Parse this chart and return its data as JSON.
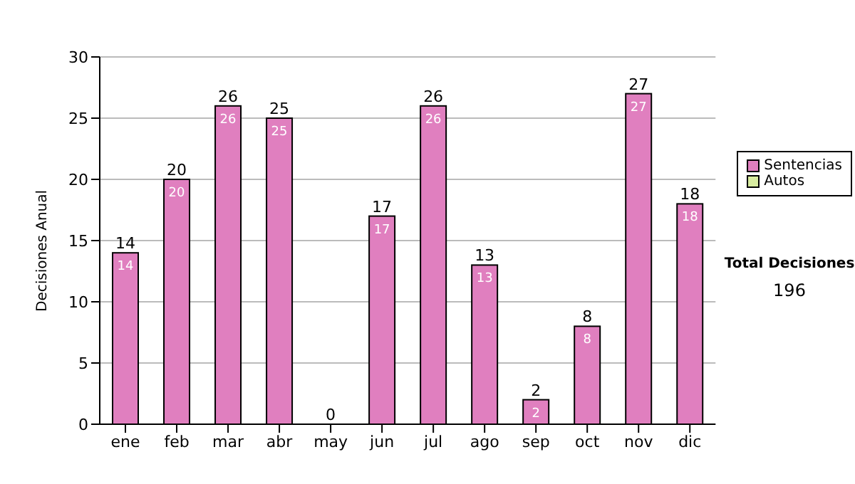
{
  "chart_data": {
    "type": "bar",
    "ylabel": "Decisiones Anual",
    "categories": [
      "ene",
      "feb",
      "mar",
      "abr",
      "may",
      "jun",
      "jul",
      "ago",
      "sep",
      "oct",
      "nov",
      "dic"
    ],
    "series": [
      {
        "name": "Sentencias",
        "color": "#e07fbf",
        "values": [
          14,
          20,
          26,
          25,
          0,
          17,
          26,
          13,
          2,
          8,
          27,
          18
        ],
        "value_labels": [
          "14",
          "20",
          "26",
          "25",
          null,
          "17",
          "26",
          "13",
          "2",
          "8",
          "27",
          "18"
        ]
      },
      {
        "name": "Autos",
        "color": "#d8eca0",
        "values": [
          0,
          0,
          0,
          0,
          0,
          0,
          0,
          0,
          0,
          0,
          0,
          0
        ]
      }
    ],
    "stacked": true,
    "totals": [
      "14",
      "20",
      "26",
      "25",
      "0",
      "17",
      "26",
      "13",
      "2",
      "8",
      "27",
      "18"
    ],
    "ylim": [
      0,
      30
    ],
    "yticks": [
      0,
      5,
      10,
      15,
      20,
      25,
      30
    ],
    "grid": "y",
    "legend": "right",
    "annotations": [
      "Total Decisiones",
      "196"
    ]
  }
}
